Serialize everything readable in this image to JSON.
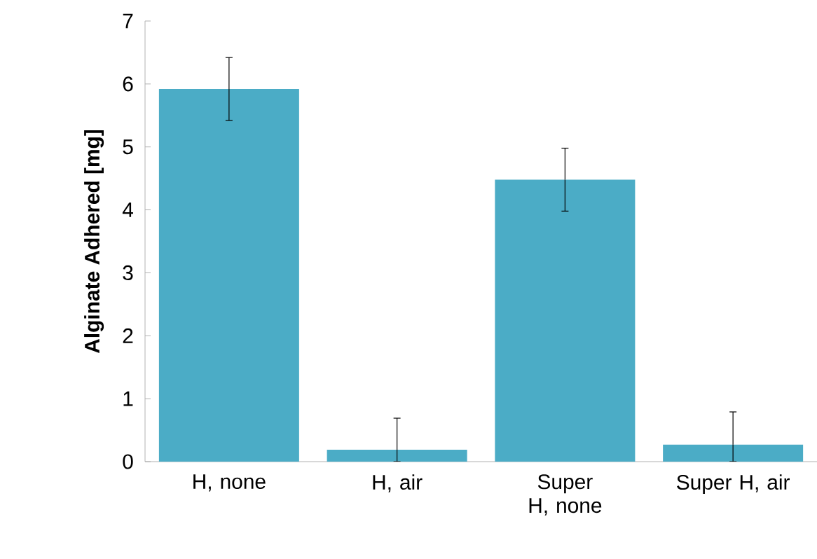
{
  "chart_data": {
    "type": "bar",
    "ylabel": "Alginate Adhered [mg]",
    "categories": [
      "H, none",
      "H, air",
      "Super H, none",
      "Super H, air"
    ],
    "values": [
      5.92,
      0.19,
      4.48,
      0.27
    ],
    "errors": [
      0.5,
      [
        0,
        0.69
      ],
      0.5,
      [
        0,
        0.79
      ]
    ],
    "color": "#4bacc6",
    "ylim": [
      0,
      7
    ],
    "yticks": [
      0,
      1,
      2,
      3,
      4,
      5,
      6,
      7
    ],
    "grid": false
  }
}
